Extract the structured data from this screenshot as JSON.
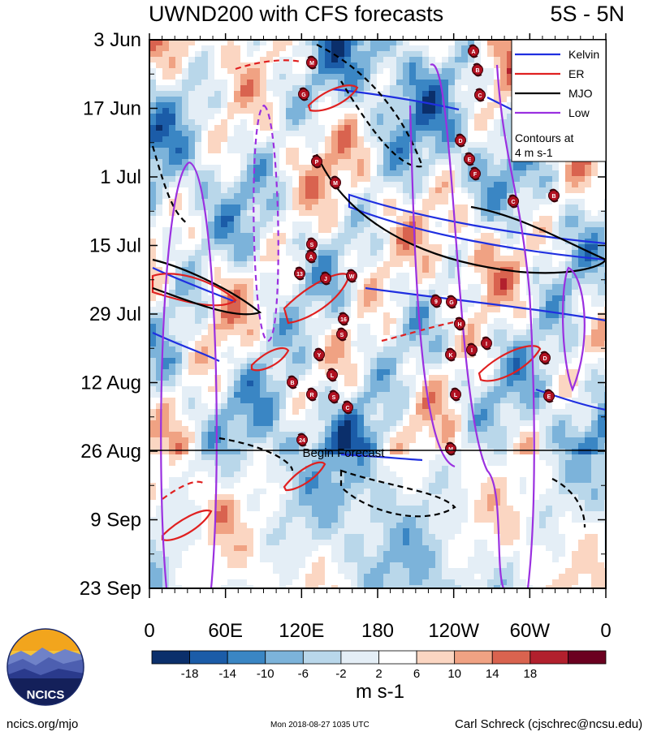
{
  "title": "UWND200 with CFS forecasts",
  "region": "5S - 5N",
  "chart_data": {
    "type": "heatmap",
    "title": "UWND200 with CFS forecasts",
    "subtitle": "5S - 5N",
    "x_ticks": [
      "0",
      "60E",
      "120E",
      "180",
      "120W",
      "60W",
      "0"
    ],
    "x_range_deg_east": [
      0,
      360
    ],
    "x_tick_positions_deg_east": [
      0,
      60,
      120,
      180,
      240,
      300,
      360
    ],
    "y_ticks": [
      "3 Jun",
      "17 Jun",
      "1 Jul",
      "15 Jul",
      "29 Jul",
      "12 Aug",
      "26 Aug",
      "9 Sep",
      "23 Sep"
    ],
    "y_range": [
      "2018-06-03",
      "2018-09-23"
    ],
    "colorbar": {
      "levels": [
        -18,
        -14,
        -10,
        -6,
        -2,
        2,
        6,
        10,
        14,
        18
      ],
      "tick_labels": [
        "-18",
        "-14",
        "-10",
        "-6",
        "-2",
        "2",
        "6",
        "10",
        "14",
        "18"
      ],
      "colors": [
        "#0b2f6b",
        "#1b5ca8",
        "#3a86c4",
        "#7cb3da",
        "#b9d7ea",
        "#e4eef6",
        "#ffffff",
        "#fbd6c2",
        "#f0a283",
        "#d9634f",
        "#b2202d",
        "#6b0020"
      ],
      "units": "m s-1"
    },
    "legend": {
      "position": "top-right",
      "entries": [
        {
          "name": "Kelvin",
          "color": "#1f2fe0"
        },
        {
          "name": "ER",
          "color": "#e02020"
        },
        {
          "name": "MJO",
          "color": "#000000"
        },
        {
          "name": "Low",
          "color": "#9a30e0"
        }
      ],
      "note": [
        "Contours at",
        "4 m s-1"
      ]
    },
    "annotation": {
      "text": "Begin Forecast",
      "date": "2018-08-26"
    },
    "storm_symbols": [
      "A",
      "B",
      "C",
      "M",
      "G",
      "D",
      "E",
      "F",
      "P",
      "M",
      "C",
      "B",
      "S",
      "A",
      "13",
      "J",
      "W",
      "9",
      "G",
      "16",
      "H",
      "S",
      "K",
      "I",
      "I",
      "D",
      "Y",
      "B",
      "L",
      "R",
      "S",
      "C",
      "E",
      "L",
      "24",
      "M"
    ]
  },
  "footer": {
    "site": "ncics.org/mjo",
    "timestamp": "Mon 2018-08-27 1035 UTC",
    "author": "Carl Schreck (cjschrec@ncsu.edu)",
    "logo_text": "NCICS"
  }
}
